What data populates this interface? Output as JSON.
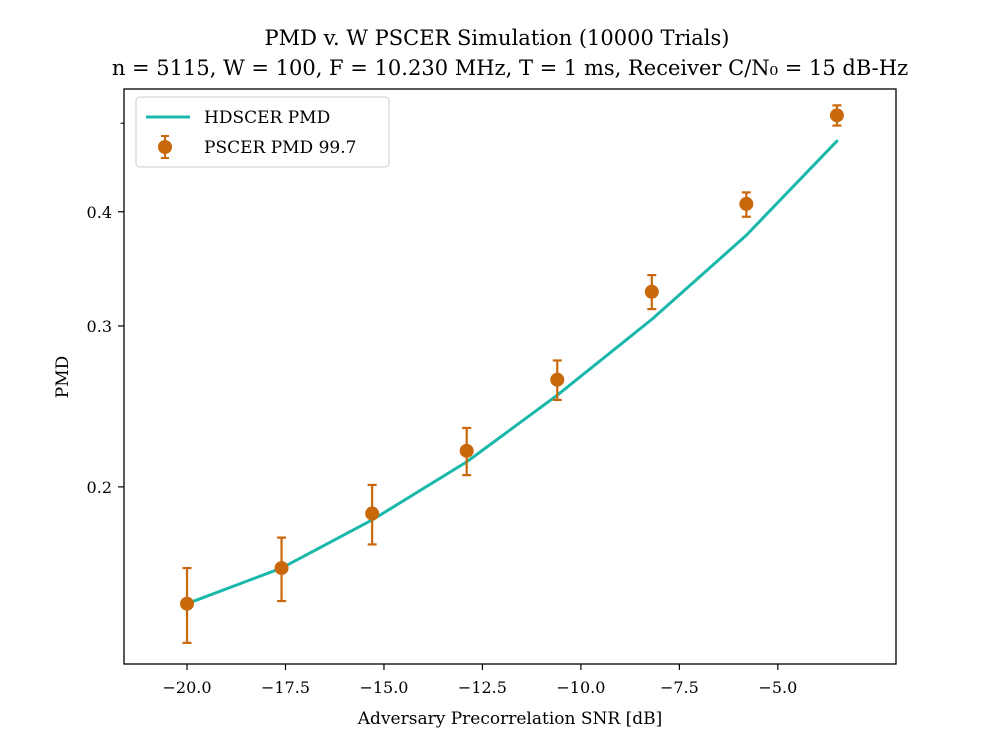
{
  "chart_data": {
    "type": "line",
    "title_line1": "PMD v. W PSCER Simulation (10000 Trials)",
    "title_line2": "n = 5115, W = 100, F = 10.230 MHz, T = 1 ms, Receiver C/N₀ = 15 dB-Hz",
    "xlabel": "Adversary Precorrelation SNR [dB]",
    "ylabel": "PMD",
    "y_scale": "log",
    "xlim": [
      -21.6,
      -2.0
    ],
    "ylim": [
      0.128,
      0.545
    ],
    "x_ticks": [
      -20.0,
      -17.5,
      -15.0,
      -12.5,
      -10.0,
      -7.5,
      -5.0
    ],
    "x_tick_labels": [
      "−20.0",
      "−17.5",
      "−15.0",
      "−12.5",
      "−10.0",
      "−7.5",
      "−5.0"
    ],
    "y_ticks": [
      0.2,
      0.3,
      0.4
    ],
    "y_tick_labels": [
      "0.2",
      "0.3",
      "0.4"
    ],
    "legend": {
      "placement": "top-left",
      "entries": [
        "HDSCER PMD",
        "PSCER PMD 99.7"
      ]
    },
    "series": [
      {
        "name": "HDSCER PMD",
        "kind": "line",
        "color": "#1ab8ab",
        "x": [
          -20.0,
          -17.6,
          -15.3,
          -12.9,
          -10.6,
          -8.2,
          -5.8,
          -3.5
        ],
        "y": [
          0.149,
          0.163,
          0.184,
          0.213,
          0.252,
          0.305,
          0.377,
          0.478
        ]
      },
      {
        "name": "PSCER PMD 99.7",
        "kind": "errorbar",
        "color": "#c8680a",
        "x": [
          -20.0,
          -17.6,
          -15.3,
          -12.9,
          -10.6,
          -8.2,
          -5.8,
          -3.5
        ],
        "y": [
          0.149,
          0.163,
          0.187,
          0.219,
          0.262,
          0.327,
          0.408,
          0.51
        ],
        "yerr_low": [
          0.014,
          0.013,
          0.014,
          0.013,
          0.013,
          0.014,
          0.013,
          0.013
        ],
        "yerr_high": [
          0.014,
          0.013,
          0.014,
          0.013,
          0.013,
          0.014,
          0.012,
          0.013
        ]
      }
    ]
  }
}
